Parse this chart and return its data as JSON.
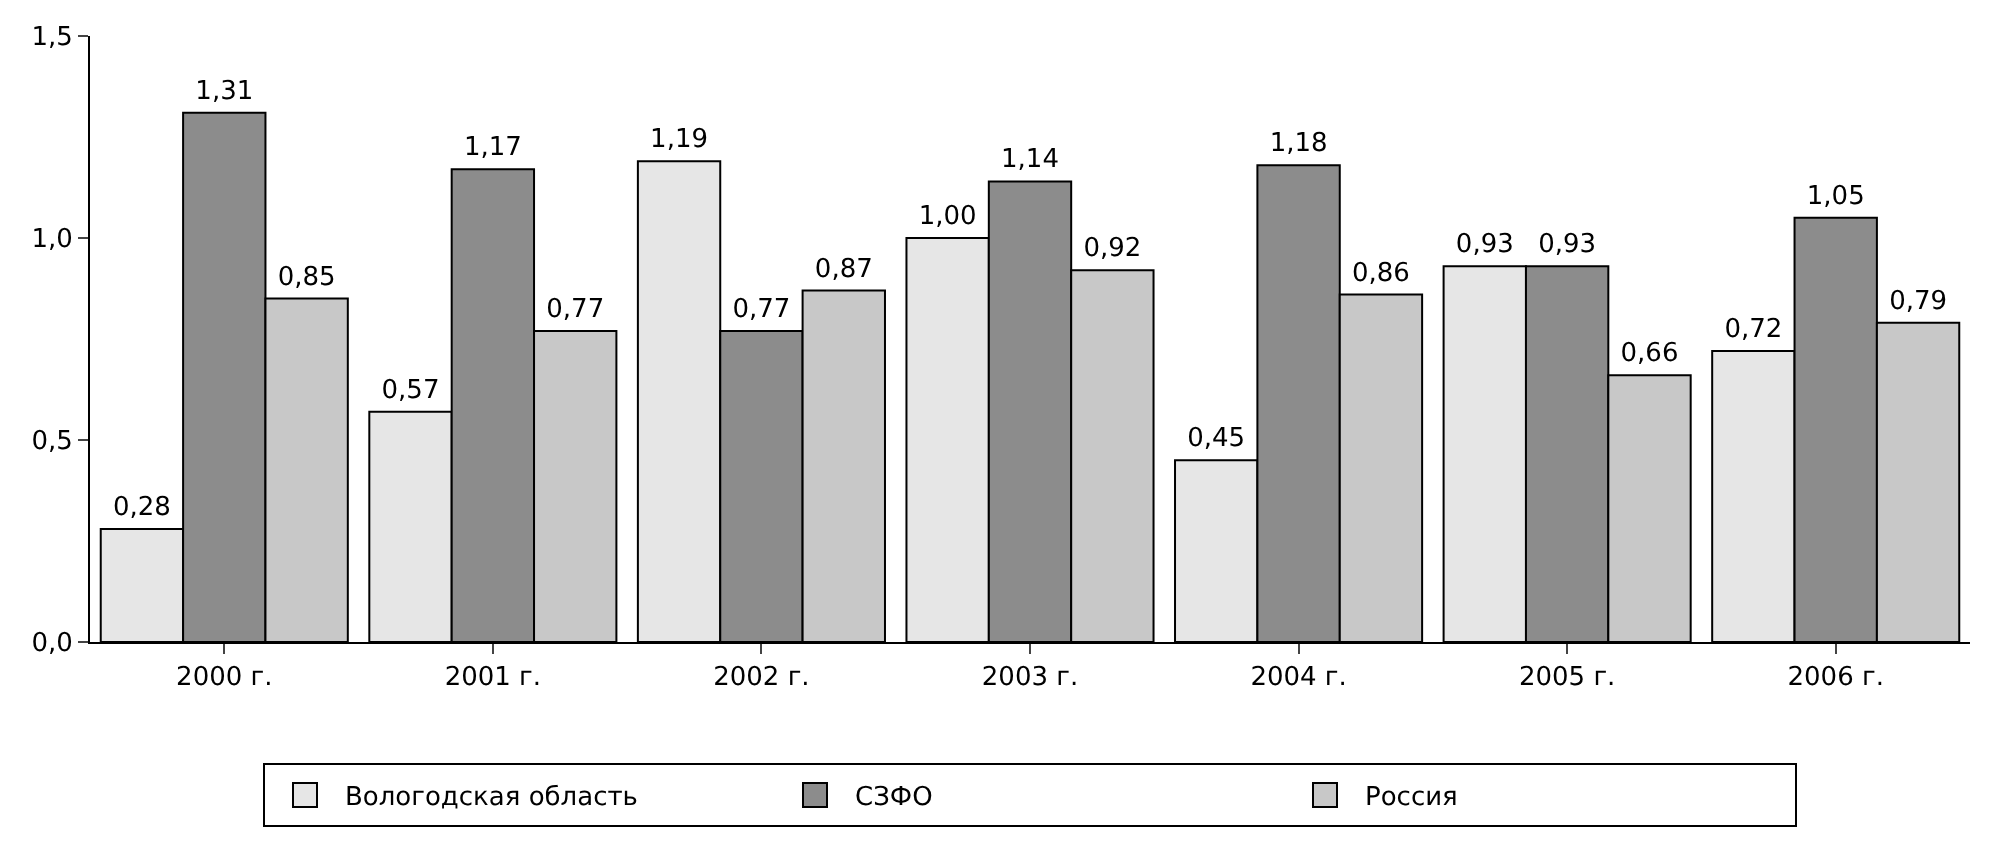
{
  "chart_data": {
    "type": "bar",
    "categories": [
      "2000 г.",
      "2001 г.",
      "2002 г.",
      "2003 г.",
      "2004 г.",
      "2005 г.",
      "2006 г."
    ],
    "series": [
      {
        "name": "Вологодская область",
        "color": "#e6e6e6",
        "values": [
          0.28,
          0.57,
          1.19,
          1.0,
          0.45,
          0.93,
          0.72
        ],
        "value_labels": [
          "0,28",
          "0,57",
          "1,19",
          "1,00",
          "0,45",
          "0,93",
          "0,72"
        ]
      },
      {
        "name": "СЗФО",
        "color": "#8c8c8c",
        "values": [
          1.31,
          1.17,
          0.77,
          1.14,
          1.18,
          0.93,
          1.05
        ],
        "value_labels": [
          "1,31",
          "1,17",
          "0,77",
          "1,14",
          "1,18",
          "0,93",
          "1,05"
        ]
      },
      {
        "name": "Россия",
        "color": "#c8c8c8",
        "values": [
          0.85,
          0.77,
          0.87,
          0.92,
          0.86,
          0.66,
          0.79
        ],
        "value_labels": [
          "0,85",
          "0,77",
          "0,87",
          "0,92",
          "0,86",
          "0,66",
          "0,79"
        ]
      }
    ],
    "ylim": [
      0,
      1.5
    ],
    "yticks": [
      {
        "value": 0,
        "label": "0,0"
      },
      {
        "value": 0.5,
        "label": "0,5"
      },
      {
        "value": 1,
        "label": "1,0"
      },
      {
        "value": 1.5,
        "label": "1,5"
      }
    ],
    "grid": false,
    "legend": "bottom"
  }
}
